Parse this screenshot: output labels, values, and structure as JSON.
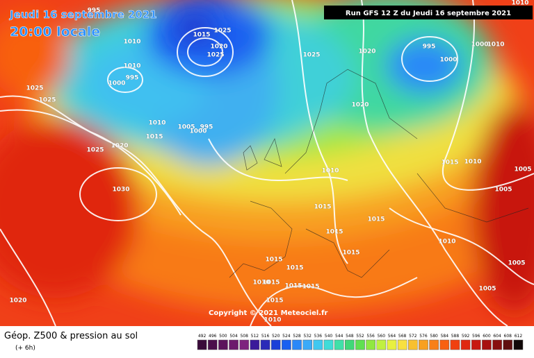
{
  "header": {
    "date": "Jeudi 16 septembre 2021",
    "time": "20:00 locale",
    "run": "Run GFS 12 Z du Jeudi 16 septembre 2021"
  },
  "copyright": "Copyright © 2021 Meteociel.fr",
  "footer": {
    "title": "Géop. Z500 & pression au sol",
    "lead": "(+ 6h)"
  },
  "isobar_labels": [
    995,
    1010,
    1010,
    995,
    1000,
    1025,
    1025,
    1015,
    1025,
    1020,
    1025,
    1025,
    1020,
    995,
    1000,
    1000,
    1010,
    1010,
    1020,
    1010,
    1005,
    995,
    1000,
    1015,
    1025,
    1020,
    1030,
    1010,
    1015,
    1010,
    1005,
    1005,
    1015,
    1015,
    1015,
    1015,
    1010,
    1015,
    1015,
    1010,
    1015,
    1015,
    1015,
    1015,
    1005,
    1005,
    1020,
    1010
  ],
  "scale": {
    "labels": [
      492,
      496,
      500,
      504,
      508,
      512,
      516,
      520,
      524,
      528,
      532,
      536,
      540,
      544,
      548,
      552,
      556,
      560,
      564,
      568,
      572,
      576,
      580,
      584,
      588,
      592,
      596,
      600,
      604,
      608,
      612
    ],
    "colors": [
      "#3a0b3a",
      "#4b0f4b",
      "#5c145c",
      "#6d1a6d",
      "#7e237e",
      "#3a1a9a",
      "#2a2ab8",
      "#1a40d8",
      "#1a60f0",
      "#2a88f8",
      "#3aaaf8",
      "#40c8f0",
      "#40dcd8",
      "#40e0a8",
      "#40d878",
      "#60e050",
      "#90e840",
      "#c0f040",
      "#e8f040",
      "#f8e040",
      "#f8c030",
      "#f8a020",
      "#f88018",
      "#f86010",
      "#f04010",
      "#e02810",
      "#c81810",
      "#a81010",
      "#881010",
      "#601010",
      "#100808"
    ]
  }
}
